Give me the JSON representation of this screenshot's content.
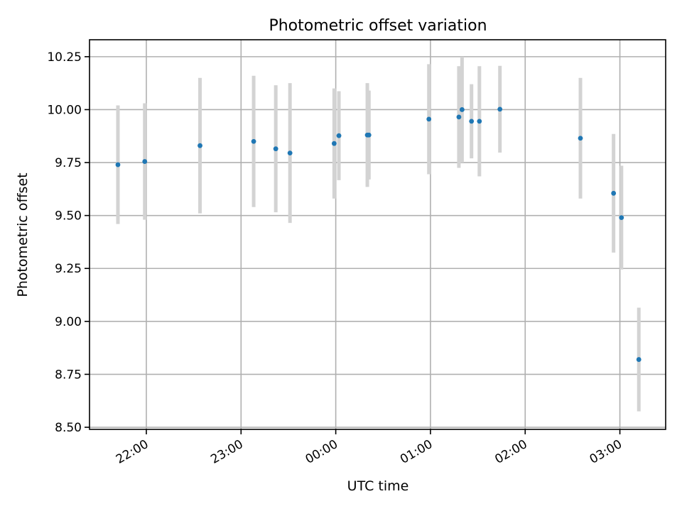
{
  "chart_data": {
    "type": "scatter",
    "title": "Photometric offset variation",
    "xlabel": "UTC time",
    "ylabel": "Photometric offset",
    "x_ticks": [
      "22:00",
      "23:00",
      "00:00",
      "01:00",
      "02:00",
      "03:00"
    ],
    "x_tick_hours": [
      22,
      23,
      24,
      25,
      26,
      27
    ],
    "y_ticks": [
      "8.50",
      "8.75",
      "9.00",
      "9.25",
      "9.50",
      "9.75",
      "10.00",
      "10.25"
    ],
    "y_tick_values": [
      8.5,
      8.75,
      9.0,
      9.25,
      9.5,
      9.75,
      10.0,
      10.25
    ],
    "xlim": [
      "21:24",
      "03:29"
    ],
    "ylim": [
      8.49,
      10.33
    ],
    "grid": true,
    "point_color": "#1f77b4",
    "errorbar_color": "#d3d3d3",
    "series": [
      {
        "points": [
          {
            "time": "21:42",
            "y": 9.74,
            "err": 0.28
          },
          {
            "time": "21:59",
            "y": 9.755,
            "err": 0.275
          },
          {
            "time": "22:34",
            "y": 9.83,
            "err": 0.32
          },
          {
            "time": "23:08",
            "y": 9.85,
            "err": 0.31
          },
          {
            "time": "23:22",
            "y": 9.815,
            "err": 0.3
          },
          {
            "time": "23:31",
            "y": 9.795,
            "err": 0.33
          },
          {
            "time": "23:59",
            "y": 9.84,
            "err": 0.26
          },
          {
            "time": "00:02",
            "y": 9.877,
            "err": 0.21
          },
          {
            "time": "00:20",
            "y": 9.88,
            "err": 0.245
          },
          {
            "time": "00:21",
            "y": 9.88,
            "err": 0.21
          },
          {
            "time": "00:59",
            "y": 9.955,
            "err": 0.26
          },
          {
            "time": "01:18",
            "y": 9.965,
            "err": 0.24
          },
          {
            "time": "01:20",
            "y": 10.0,
            "err": 0.25
          },
          {
            "time": "01:26",
            "y": 9.945,
            "err": 0.175
          },
          {
            "time": "01:31",
            "y": 9.945,
            "err": 0.26
          },
          {
            "time": "01:44",
            "y": 10.002,
            "err": 0.205
          },
          {
            "time": "02:35",
            "y": 9.865,
            "err": 0.285
          },
          {
            "time": "02:56",
            "y": 9.605,
            "err": 0.28
          },
          {
            "time": "03:01",
            "y": 9.49,
            "err": 0.245
          },
          {
            "time": "03:12",
            "y": 8.82,
            "err": 0.245
          }
        ]
      }
    ]
  }
}
